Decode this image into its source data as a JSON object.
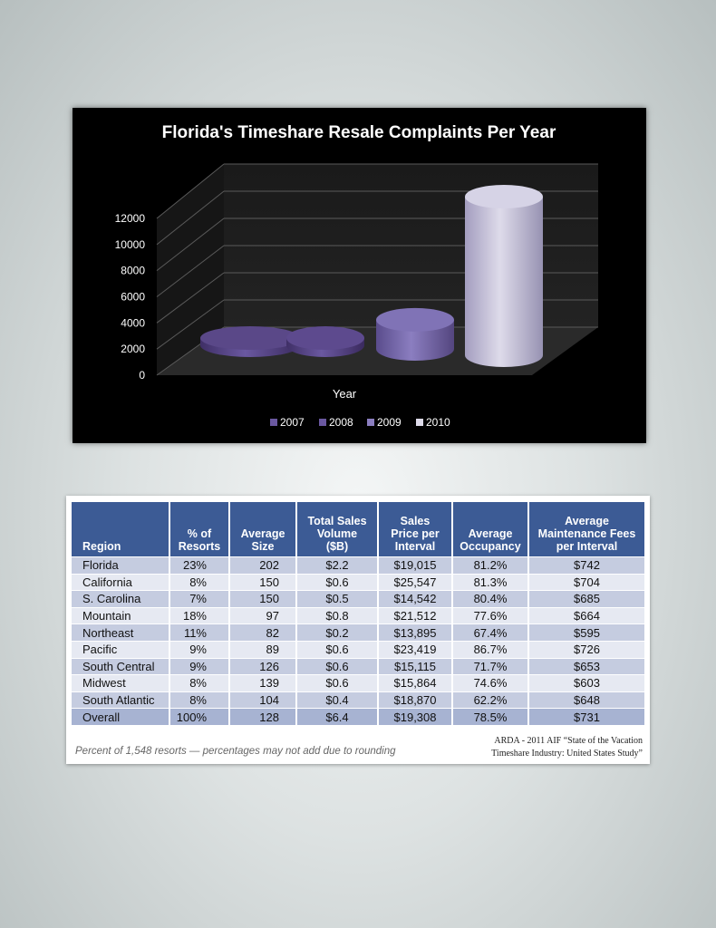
{
  "chart_data": {
    "type": "bar",
    "title": "Florida's Timeshare Resale Complaints Per Year",
    "xlabel": "Year",
    "ylabel": "",
    "ylim": [
      0,
      12000
    ],
    "yticks": [
      "0",
      "2000",
      "4000",
      "6000",
      "8000",
      "10000",
      "12000"
    ],
    "categories": [
      "2007",
      "2008",
      "2009",
      "2010"
    ],
    "values": [
      300,
      350,
      2200,
      12000
    ],
    "legend_position": "bottom",
    "colors": {
      "bar_dark": "#5e4a8c",
      "bar_mid": "#7565a8",
      "bar_light": "#c4c0d8",
      "background": "#000000",
      "grid": "#5a5a5a"
    }
  },
  "table": {
    "headers": [
      [
        "Region"
      ],
      [
        "% of",
        "Resorts"
      ],
      [
        "Average",
        "Size"
      ],
      [
        "Total Sales",
        "Volume",
        "($B)"
      ],
      [
        "Sales",
        "Price per",
        "Interval"
      ],
      [
        "Average",
        "Occupancy"
      ],
      [
        "Average",
        "Maintenance Fees",
        "per Interval"
      ]
    ],
    "rows": [
      [
        "Florida",
        "23%",
        "202",
        "$2.2",
        "$19,015",
        "81.2%",
        "$742"
      ],
      [
        "California",
        "8%",
        "150",
        "$0.6",
        "$25,547",
        "81.3%",
        "$704"
      ],
      [
        "S. Carolina",
        "7%",
        "150",
        "$0.5",
        "$14,542",
        "80.4%",
        "$685"
      ],
      [
        "Mountain",
        "18%",
        "97",
        "$0.8",
        "$21,512",
        "77.6%",
        "$664"
      ],
      [
        "Northeast",
        "11%",
        "82",
        "$0.2",
        "$13,895",
        "67.4%",
        "$595"
      ],
      [
        "Pacific",
        "9%",
        "89",
        "$0.6",
        "$23,419",
        "86.7%",
        "$726"
      ],
      [
        "South Central",
        "9%",
        "126",
        "$0.6",
        "$15,115",
        "71.7%",
        "$653"
      ],
      [
        "Midwest",
        "8%",
        "139",
        "$0.6",
        "$15,864",
        "74.6%",
        "$603"
      ],
      [
        "South Atlantic",
        "8%",
        "104",
        "$0.4",
        "$18,870",
        "62.2%",
        "$648"
      ],
      [
        "Overall",
        "100%",
        "128",
        "$6.4",
        "$19,308",
        "78.5%",
        "$731"
      ]
    ],
    "footnote": "Percent of 1,548 resorts — percentages may not add due to rounding",
    "source_line1": "ARDA - 2011 AIF “State of the Vacation",
    "source_line2": "Timeshare Industry: United States Study”"
  }
}
